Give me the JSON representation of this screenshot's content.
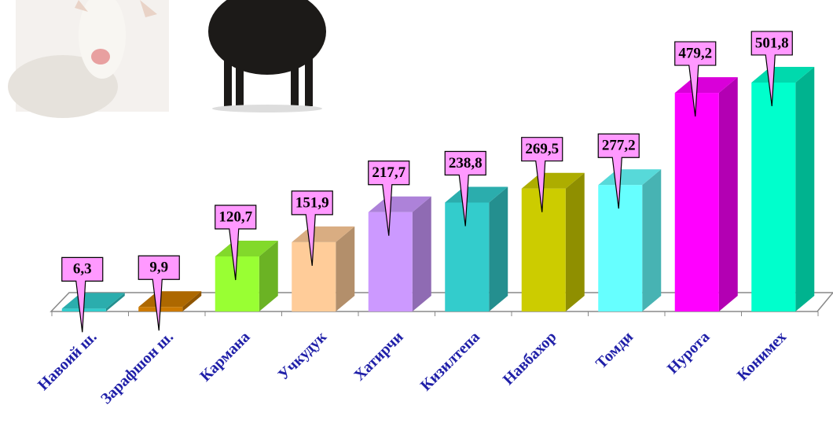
{
  "chart_data": {
    "type": "bar3d",
    "categories": [
      "Навоий ш.",
      "Зарафшон ш.",
      "Кармана",
      "Учкудук",
      "Хатирчи",
      "Кизилтепа",
      "Навбахор",
      "Томди",
      "Нурота",
      "Конимех"
    ],
    "values": [
      6.3,
      9.9,
      120.7,
      151.9,
      217.7,
      238.8,
      269.5,
      277.2,
      479.2,
      501.8
    ],
    "value_labels": [
      "6,3",
      "9,9",
      "120,7",
      "151,9",
      "217,7",
      "238,8",
      "269,5",
      "277,2",
      "479,2",
      "501,8"
    ],
    "colors": [
      "#33cccc",
      "#cc7a00",
      "#99ff33",
      "#ffcc99",
      "#cc99ff",
      "#33cccc",
      "#cccc00",
      "#66ffff",
      "#ff00ff",
      "#00ffcc"
    ]
  }
}
